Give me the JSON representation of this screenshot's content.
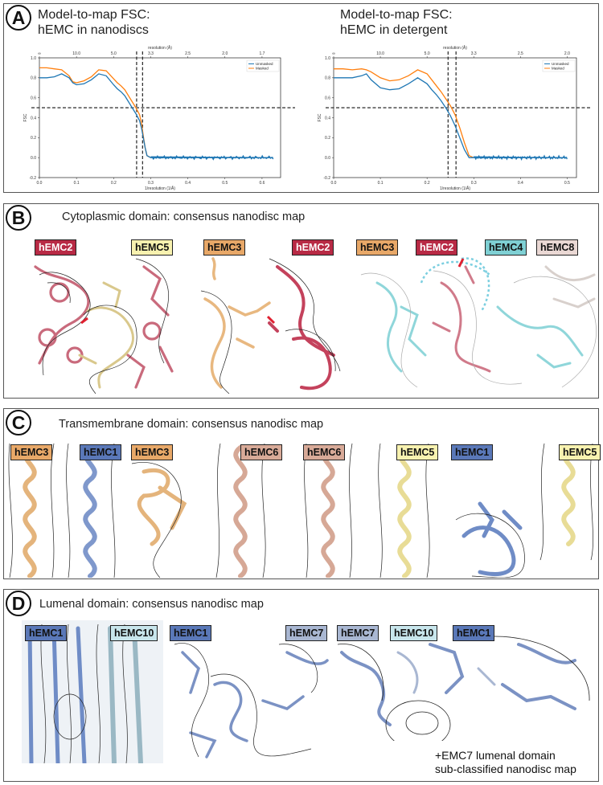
{
  "panel_a": {
    "letter": "A",
    "left_title": "Model-to-map FSC:\nhEMC in nanodiscs",
    "right_title": "Model-to-map FSC:\nhEMC in detergent"
  },
  "panel_b": {
    "letter": "B",
    "title": "Cytoplasmic domain: consensus nanodisc map",
    "labels": [
      "hEMC2",
      "hEMC5",
      "hEMC3",
      "hEMC2",
      "hEMC3",
      "hEMC2",
      "hEMC4",
      "hEMC8"
    ]
  },
  "panel_c": {
    "letter": "C",
    "title": "Transmembrane domain: consensus nanodisc map",
    "labels": [
      "hEMC3",
      "hEMC1",
      "hEMC3",
      "hEMC6",
      "hEMC6",
      "hEMC5",
      "hEMC1",
      "hEMC5"
    ]
  },
  "panel_d": {
    "letter": "D",
    "title": "Lumenal domain: consensus nanodisc map",
    "labels": [
      "hEMC1",
      "hEMC10",
      "hEMC1",
      "hEMC7",
      "hEMC7",
      "hEMC10",
      "hEMC1"
    ],
    "footnote": "+EMC7 lumenal domain\nsub-classified nanodisc map"
  },
  "colors": {
    "hEMC1": "#5a78b8",
    "hEMC2": "#b82a45",
    "hEMC3": "#e8a868",
    "hEMC4": "#7fd0d4",
    "hEMC5": "#f8f2b0",
    "hEMC6": "#d8aa98",
    "hEMC7": "#a9b7d2",
    "hEMC8": "#ead8d4",
    "hEMC10": "#c8e6ec",
    "unmasked": "#1f77b4",
    "masked": "#ff7f0e"
  },
  "chart_data": [
    {
      "type": "line",
      "title": "",
      "xlabel": "1/resolution (1/Å)",
      "ylabel": "FSC",
      "top_axis_label": "resolution (Å)",
      "xlim": [
        0.0,
        0.65
      ],
      "ylim": [
        -0.2,
        1.0
      ],
      "x_ticks": [
        0.0,
        0.1,
        0.2,
        0.3,
        0.4,
        0.5,
        0.6
      ],
      "y_ticks": [
        -0.2,
        0.0,
        0.2,
        0.4,
        0.6,
        0.8,
        1.0
      ],
      "top_ticks": [
        "∞",
        "10.0",
        "5.0",
        "3.3",
        "2.5",
        "2.0",
        "1.7"
      ],
      "top_tick_positions": [
        0.0,
        0.1,
        0.2,
        0.3,
        0.4,
        0.5,
        0.6
      ],
      "legend": "top-right",
      "hline": 0.5,
      "vlines": [
        0.262,
        0.278
      ],
      "series": [
        {
          "name": "Unmasked",
          "x": [
            0.0,
            0.02,
            0.04,
            0.06,
            0.08,
            0.09,
            0.1,
            0.12,
            0.14,
            0.16,
            0.18,
            0.2,
            0.21,
            0.22,
            0.23,
            0.24,
            0.25,
            0.26,
            0.27,
            0.275,
            0.28,
            0.285,
            0.29,
            0.3,
            0.35,
            0.4,
            0.45,
            0.5,
            0.55,
            0.6,
            0.63
          ],
          "y": [
            0.8,
            0.8,
            0.81,
            0.84,
            0.8,
            0.75,
            0.73,
            0.74,
            0.78,
            0.84,
            0.82,
            0.73,
            0.69,
            0.66,
            0.62,
            0.56,
            0.5,
            0.44,
            0.37,
            0.3,
            0.2,
            0.1,
            0.02,
            0.0,
            0.0,
            0.0,
            0.0,
            0.0,
            0.0,
            0.0,
            0.0
          ]
        },
        {
          "name": "Masked",
          "x": [
            0.0,
            0.02,
            0.04,
            0.06,
            0.08,
            0.09,
            0.1,
            0.12,
            0.14,
            0.16,
            0.18,
            0.2,
            0.21,
            0.22,
            0.23,
            0.24,
            0.25,
            0.26,
            0.27,
            0.275,
            0.28,
            0.285,
            0.29,
            0.3
          ],
          "y": [
            0.9,
            0.9,
            0.89,
            0.88,
            0.82,
            0.76,
            0.75,
            0.77,
            0.81,
            0.88,
            0.87,
            0.79,
            0.75,
            0.72,
            0.68,
            0.62,
            0.56,
            0.5,
            0.43,
            0.35,
            0.22,
            0.1,
            0.02,
            0.0
          ]
        }
      ]
    },
    {
      "type": "line",
      "title": "",
      "xlabel": "1/resolution (1/Å)",
      "ylabel": "FSC",
      "top_axis_label": "resolution (Å)",
      "xlim": [
        0.0,
        0.52
      ],
      "ylim": [
        -0.2,
        1.0
      ],
      "x_ticks": [
        0.0,
        0.1,
        0.2,
        0.3,
        0.4,
        0.5
      ],
      "y_ticks": [
        -0.2,
        0.0,
        0.2,
        0.4,
        0.6,
        0.8,
        1.0
      ],
      "top_ticks": [
        "∞",
        "10.0",
        "5.0",
        "3.3",
        "2.5",
        "2.0"
      ],
      "top_tick_positions": [
        0.0,
        0.1,
        0.2,
        0.3,
        0.4,
        0.5
      ],
      "legend": "top-right",
      "hline": 0.5,
      "vlines": [
        0.245,
        0.262
      ],
      "series": [
        {
          "name": "Unmasked",
          "x": [
            0.0,
            0.02,
            0.04,
            0.06,
            0.07,
            0.08,
            0.1,
            0.12,
            0.14,
            0.16,
            0.18,
            0.2,
            0.21,
            0.22,
            0.23,
            0.24,
            0.25,
            0.26,
            0.27,
            0.28,
            0.29,
            0.3,
            0.35,
            0.4,
            0.45,
            0.5
          ],
          "y": [
            0.8,
            0.8,
            0.8,
            0.82,
            0.84,
            0.78,
            0.7,
            0.68,
            0.69,
            0.74,
            0.8,
            0.74,
            0.68,
            0.63,
            0.57,
            0.5,
            0.42,
            0.32,
            0.2,
            0.08,
            0.0,
            0.0,
            0.0,
            0.0,
            0.0,
            0.0
          ]
        },
        {
          "name": "Masked",
          "x": [
            0.0,
            0.02,
            0.04,
            0.06,
            0.07,
            0.08,
            0.1,
            0.12,
            0.14,
            0.16,
            0.18,
            0.2,
            0.21,
            0.22,
            0.23,
            0.24,
            0.25,
            0.26,
            0.27,
            0.28,
            0.29,
            0.3
          ],
          "y": [
            0.89,
            0.89,
            0.88,
            0.89,
            0.88,
            0.86,
            0.8,
            0.77,
            0.78,
            0.82,
            0.88,
            0.84,
            0.78,
            0.72,
            0.66,
            0.59,
            0.52,
            0.43,
            0.3,
            0.15,
            0.02,
            0.0
          ]
        }
      ]
    }
  ]
}
